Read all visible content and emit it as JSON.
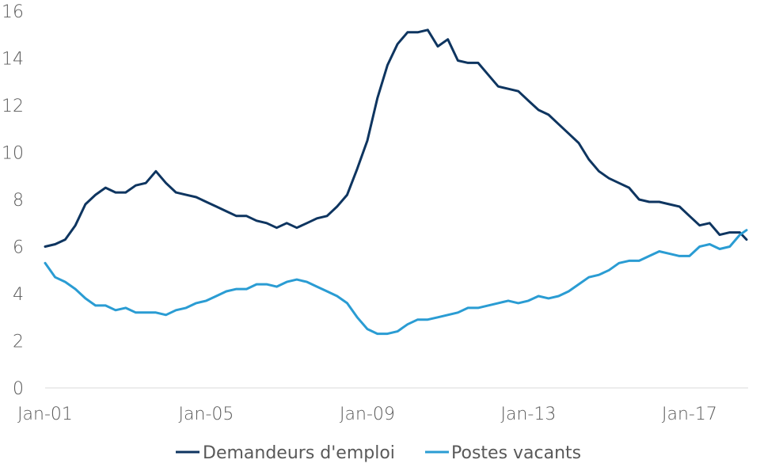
{
  "chart_data": {
    "type": "line",
    "title": "",
    "xlabel": "",
    "ylabel": "",
    "ylim": [
      0,
      16
    ],
    "yticks": [
      0,
      2,
      4,
      6,
      8,
      10,
      12,
      14,
      16
    ],
    "xlim": [
      "2001-01",
      "2018-06"
    ],
    "xticks": [
      {
        "date": "2001-01",
        "label": "Jan-01"
      },
      {
        "date": "2005-01",
        "label": "Jan-05"
      },
      {
        "date": "2009-01",
        "label": "Jan-09"
      },
      {
        "date": "2013-01",
        "label": "Jan-13"
      },
      {
        "date": "2017-01",
        "label": "Jan-17"
      }
    ],
    "grid": false,
    "legend_position": "bottom",
    "series": [
      {
        "name": "Demandeurs d'emploi",
        "color": "#0e3560",
        "points": [
          [
            "2001-01",
            6.0
          ],
          [
            "2001-04",
            6.1
          ],
          [
            "2001-07",
            6.3
          ],
          [
            "2001-10",
            6.9
          ],
          [
            "2002-01",
            7.8
          ],
          [
            "2002-04",
            8.2
          ],
          [
            "2002-07",
            8.5
          ],
          [
            "2002-10",
            8.3
          ],
          [
            "2003-01",
            8.3
          ],
          [
            "2003-04",
            8.6
          ],
          [
            "2003-07",
            8.7
          ],
          [
            "2003-10",
            9.2
          ],
          [
            "2004-01",
            8.7
          ],
          [
            "2004-04",
            8.3
          ],
          [
            "2004-07",
            8.2
          ],
          [
            "2004-10",
            8.1
          ],
          [
            "2005-01",
            7.9
          ],
          [
            "2005-04",
            7.7
          ],
          [
            "2005-07",
            7.5
          ],
          [
            "2005-10",
            7.3
          ],
          [
            "2006-01",
            7.3
          ],
          [
            "2006-04",
            7.1
          ],
          [
            "2006-07",
            7.0
          ],
          [
            "2006-10",
            6.8
          ],
          [
            "2007-01",
            7.0
          ],
          [
            "2007-04",
            6.8
          ],
          [
            "2007-07",
            7.0
          ],
          [
            "2007-10",
            7.2
          ],
          [
            "2008-01",
            7.3
          ],
          [
            "2008-04",
            7.7
          ],
          [
            "2008-07",
            8.2
          ],
          [
            "2008-10",
            9.3
          ],
          [
            "2009-01",
            10.5
          ],
          [
            "2009-04",
            12.3
          ],
          [
            "2009-07",
            13.7
          ],
          [
            "2009-10",
            14.6
          ],
          [
            "2010-01",
            15.1
          ],
          [
            "2010-04",
            15.1
          ],
          [
            "2010-07",
            15.2
          ],
          [
            "2010-10",
            14.5
          ],
          [
            "2011-01",
            14.8
          ],
          [
            "2011-04",
            13.9
          ],
          [
            "2011-07",
            13.8
          ],
          [
            "2011-10",
            13.8
          ],
          [
            "2012-01",
            13.3
          ],
          [
            "2012-04",
            12.8
          ],
          [
            "2012-07",
            12.7
          ],
          [
            "2012-10",
            12.6
          ],
          [
            "2013-01",
            12.2
          ],
          [
            "2013-04",
            11.8
          ],
          [
            "2013-07",
            11.6
          ],
          [
            "2013-10",
            11.2
          ],
          [
            "2014-01",
            10.8
          ],
          [
            "2014-04",
            10.4
          ],
          [
            "2014-07",
            9.7
          ],
          [
            "2014-10",
            9.2
          ],
          [
            "2015-01",
            8.9
          ],
          [
            "2015-04",
            8.7
          ],
          [
            "2015-07",
            8.5
          ],
          [
            "2015-10",
            8.0
          ],
          [
            "2016-01",
            7.9
          ],
          [
            "2016-04",
            7.9
          ],
          [
            "2016-07",
            7.8
          ],
          [
            "2016-10",
            7.7
          ],
          [
            "2017-01",
            7.3
          ],
          [
            "2017-04",
            6.9
          ],
          [
            "2017-07",
            7.0
          ],
          [
            "2017-10",
            6.5
          ],
          [
            "2018-01",
            6.6
          ],
          [
            "2018-04",
            6.6
          ],
          [
            "2018-06",
            6.3
          ]
        ]
      },
      {
        "name": "Postes vacants",
        "color": "#2a9cd3",
        "points": [
          [
            "2001-01",
            5.3
          ],
          [
            "2001-04",
            4.7
          ],
          [
            "2001-07",
            4.5
          ],
          [
            "2001-10",
            4.2
          ],
          [
            "2002-01",
            3.8
          ],
          [
            "2002-04",
            3.5
          ],
          [
            "2002-07",
            3.5
          ],
          [
            "2002-10",
            3.3
          ],
          [
            "2003-01",
            3.4
          ],
          [
            "2003-04",
            3.2
          ],
          [
            "2003-07",
            3.2
          ],
          [
            "2003-10",
            3.2
          ],
          [
            "2004-01",
            3.1
          ],
          [
            "2004-04",
            3.3
          ],
          [
            "2004-07",
            3.4
          ],
          [
            "2004-10",
            3.6
          ],
          [
            "2005-01",
            3.7
          ],
          [
            "2005-04",
            3.9
          ],
          [
            "2005-07",
            4.1
          ],
          [
            "2005-10",
            4.2
          ],
          [
            "2006-01",
            4.2
          ],
          [
            "2006-04",
            4.4
          ],
          [
            "2006-07",
            4.4
          ],
          [
            "2006-10",
            4.3
          ],
          [
            "2007-01",
            4.5
          ],
          [
            "2007-04",
            4.6
          ],
          [
            "2007-07",
            4.5
          ],
          [
            "2007-10",
            4.3
          ],
          [
            "2008-01",
            4.1
          ],
          [
            "2008-04",
            3.9
          ],
          [
            "2008-07",
            3.6
          ],
          [
            "2008-10",
            3.0
          ],
          [
            "2009-01",
            2.5
          ],
          [
            "2009-04",
            2.3
          ],
          [
            "2009-07",
            2.3
          ],
          [
            "2009-10",
            2.4
          ],
          [
            "2010-01",
            2.7
          ],
          [
            "2010-04",
            2.9
          ],
          [
            "2010-07",
            2.9
          ],
          [
            "2010-10",
            3.0
          ],
          [
            "2011-01",
            3.1
          ],
          [
            "2011-04",
            3.2
          ],
          [
            "2011-07",
            3.4
          ],
          [
            "2011-10",
            3.4
          ],
          [
            "2012-01",
            3.5
          ],
          [
            "2012-04",
            3.6
          ],
          [
            "2012-07",
            3.7
          ],
          [
            "2012-10",
            3.6
          ],
          [
            "2013-01",
            3.7
          ],
          [
            "2013-04",
            3.9
          ],
          [
            "2013-07",
            3.8
          ],
          [
            "2013-10",
            3.9
          ],
          [
            "2014-01",
            4.1
          ],
          [
            "2014-04",
            4.4
          ],
          [
            "2014-07",
            4.7
          ],
          [
            "2014-10",
            4.8
          ],
          [
            "2015-01",
            5.0
          ],
          [
            "2015-04",
            5.3
          ],
          [
            "2015-07",
            5.4
          ],
          [
            "2015-10",
            5.4
          ],
          [
            "2016-01",
            5.6
          ],
          [
            "2016-04",
            5.8
          ],
          [
            "2016-07",
            5.7
          ],
          [
            "2016-10",
            5.6
          ],
          [
            "2017-01",
            5.6
          ],
          [
            "2017-04",
            6.0
          ],
          [
            "2017-07",
            6.1
          ],
          [
            "2017-10",
            5.9
          ],
          [
            "2018-01",
            6.0
          ],
          [
            "2018-04",
            6.5
          ],
          [
            "2018-06",
            6.7
          ]
        ]
      }
    ]
  }
}
